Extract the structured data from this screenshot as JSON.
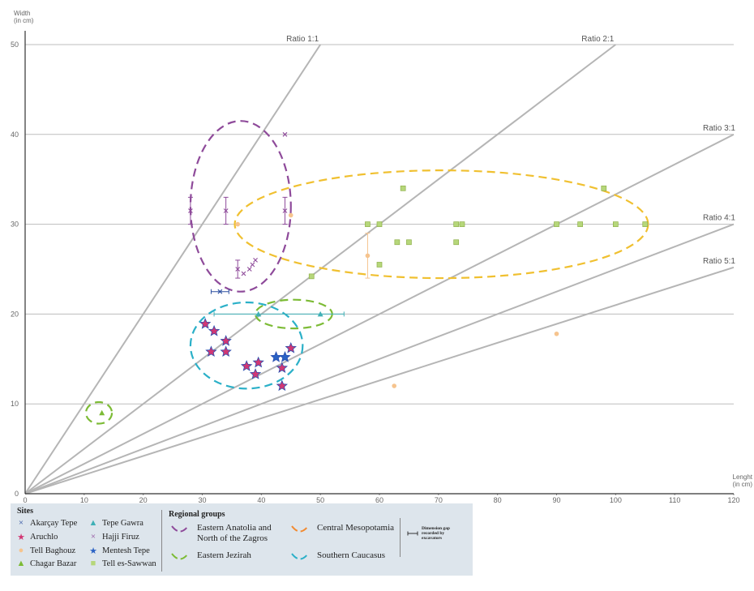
{
  "chart_data": {
    "type": "scatter",
    "title": "",
    "xlabel": "Lenght\n(in cm)",
    "ylabel": "Width\n(in cm)",
    "xlim": [
      0,
      120
    ],
    "ylim": [
      0,
      50
    ],
    "x_ticks": [
      0,
      10,
      20,
      30,
      40,
      50,
      60,
      70,
      80,
      90,
      100,
      110,
      120
    ],
    "y_ticks": [
      0,
      10,
      20,
      30,
      40,
      50
    ],
    "grid": "horizontal",
    "ratio_lines": [
      {
        "label": "Ratio 1:1",
        "slope": 1
      },
      {
        "label": "Ratio 2:1",
        "slope": 0.5
      },
      {
        "label": "Ratio 3:1",
        "slope": 0.3333
      },
      {
        "label": "Ratio 4:1",
        "slope": 0.25
      },
      {
        "label": "Ratio 5:1",
        "slope": 0.21
      }
    ],
    "series": [
      {
        "name": "Akarçay Tepe",
        "marker": "x",
        "color": "#2b4fa0",
        "points": [
          [
            33,
            22.5
          ]
        ],
        "error_x": [
          [
            31.5,
            34.5
          ]
        ]
      },
      {
        "name": "Aruchlo",
        "marker": "star",
        "color": "#d23773",
        "points": [
          [
            30.5,
            18.9
          ],
          [
            32,
            18.1
          ],
          [
            34,
            17
          ],
          [
            31.5,
            15.8
          ],
          [
            34,
            15.8
          ],
          [
            37.5,
            14.2
          ],
          [
            39.5,
            14.6
          ],
          [
            39,
            13.3
          ],
          [
            43.5,
            14
          ],
          [
            43.5,
            12
          ],
          [
            45,
            16.2
          ]
        ]
      },
      {
        "name": "Tell Baghouz",
        "marker": "circle",
        "color": "#f6c48e",
        "points": [
          [
            36,
            30
          ],
          [
            45,
            31
          ],
          [
            58,
            26.5
          ],
          [
            62.5,
            12
          ],
          [
            90,
            17.8
          ]
        ],
        "error_y": [
          [
            58,
            24,
            29
          ]
        ]
      },
      {
        "name": "Chagar Bazar",
        "marker": "triangle",
        "color": "#7cbb35",
        "points": [
          [
            13,
            9
          ]
        ]
      },
      {
        "name": "Tepe Gawra",
        "marker": "triangle",
        "color": "#3fb0b6",
        "points": [
          [
            39.5,
            20
          ],
          [
            50,
            20
          ]
        ],
        "error_x": [
          [
            32,
            54
          ]
        ]
      },
      {
        "name": "Hajji Firuz",
        "marker": "x",
        "color": "#8e4a9a",
        "points": [
          [
            28,
            31.5
          ],
          [
            34,
            31.5
          ],
          [
            44,
            31.5
          ],
          [
            36,
            25
          ],
          [
            38,
            25
          ],
          [
            39,
            26
          ],
          [
            37,
            24.5
          ],
          [
            38.5,
            25.5
          ],
          [
            44,
            40
          ]
        ],
        "error_y": [
          [
            28,
            30,
            33
          ],
          [
            34,
            30,
            33
          ],
          [
            44,
            30,
            33
          ],
          [
            36,
            24,
            26
          ]
        ]
      },
      {
        "name": "Mentesh Tepe",
        "marker": "star",
        "color": "#2a62c4",
        "points": [
          [
            42.5,
            15.2
          ],
          [
            44,
            15.2
          ]
        ]
      },
      {
        "name": "Tell es-Sawwan",
        "marker": "square",
        "color": "#b6d77a",
        "points": [
          [
            48.5,
            24.2
          ],
          [
            58,
            30
          ],
          [
            60,
            30
          ],
          [
            60,
            25.5
          ],
          [
            63,
            28
          ],
          [
            65,
            28
          ],
          [
            64,
            34
          ],
          [
            73,
            30
          ],
          [
            74,
            30
          ],
          [
            73,
            28
          ],
          [
            90,
            30
          ],
          [
            94,
            30
          ],
          [
            98,
            34
          ],
          [
            100,
            30
          ],
          [
            105,
            30
          ]
        ]
      }
    ],
    "regional_groups": [
      {
        "name": "Eastern Anatolia and North of the Zagros",
        "color": "#8e4a9a",
        "center": [
          36.5,
          32
        ],
        "radius_x": 8.5,
        "radius_y": 9.5
      },
      {
        "name": "Central Mesopotamia",
        "color": "#f0c030",
        "center": [
          70.5,
          30
        ],
        "radius_x": 35,
        "radius_y": 6
      },
      {
        "name": "Eastern Jezirah",
        "color": "#7cbb35",
        "center": [
          45.5,
          20
        ],
        "radius_x": 6.5,
        "radius_y": 1.6
      },
      {
        "name": "Eastern Jezirah",
        "color": "#7cbb35",
        "center": [
          12.5,
          9
        ],
        "radius_x": 2.2,
        "radius_y": 1.2
      },
      {
        "name": "Southern Caucasus",
        "color": "#2bb0c8",
        "center": [
          37.5,
          16.5
        ],
        "radius_x": 9.5,
        "radius_y": 4.8
      }
    ]
  },
  "legend": {
    "sites_title": "Sites",
    "sites": [
      {
        "label": "Akarçay Tepe",
        "symbol": "×",
        "color": "#2b4fa0"
      },
      {
        "label": "Aruchlo",
        "symbol": "★",
        "color": "#d23773"
      },
      {
        "label": "Tell Baghouz",
        "symbol": "●",
        "color": "#f6c48e"
      },
      {
        "label": "Chagar Bazar",
        "symbol": "▲",
        "color": "#7cbb35"
      },
      {
        "label": "Tepe Gawra",
        "symbol": "▲",
        "color": "#3fb0b6"
      },
      {
        "label": "Hajji Firuz",
        "symbol": "×",
        "color": "#8e4a9a"
      },
      {
        "label": "Mentesh Tepe",
        "symbol": "★",
        "color": "#2a62c4"
      },
      {
        "label": "Tell es-Sawwan",
        "symbol": "■",
        "color": "#b6d77a"
      }
    ],
    "groups_title": "Regional groups",
    "groups": [
      {
        "label": "Eastern Anatolia and North of the Zagros",
        "color": "#8e4a9a"
      },
      {
        "label": "Eastern Jezirah",
        "color": "#7cbb35"
      },
      {
        "label": "Central Mesopotamia",
        "color": "#f28a30"
      },
      {
        "label": "Southern Caucasus",
        "color": "#2bb0c8"
      }
    ],
    "gap_note": "Dimension gap recorded by excavators"
  }
}
